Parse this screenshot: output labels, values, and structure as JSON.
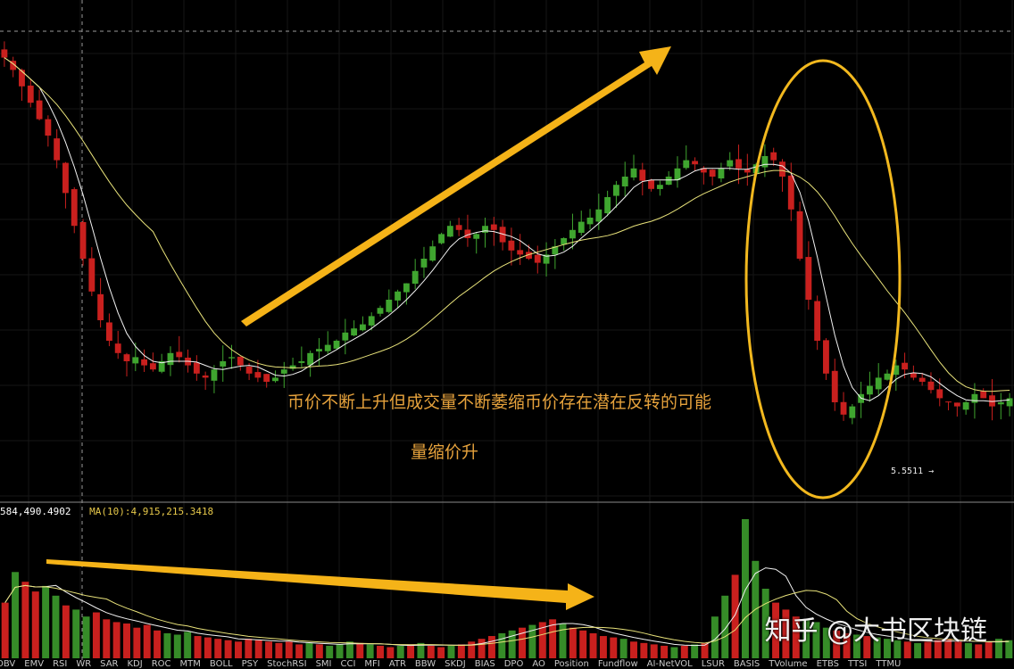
{
  "annotations": {
    "main": "币价不断上升但成交量不断萎缩币价存在潜在反转的可能",
    "sub": "量缩价升"
  },
  "volume_legend": {
    "value": "584,490.4902",
    "ma": "MA(10):4,915,215.3418"
  },
  "price_label": "5.5511 →",
  "indicator_tabs": [
    "OBV",
    "EMV",
    "RSI",
    "WR",
    "SAR",
    "KDJ",
    "ROC",
    "MTM",
    "BOLL",
    "PSY",
    "StochRSI",
    "SMI",
    "CCI",
    "MFI",
    "ATR",
    "BBW",
    "SKDJ",
    "BIAS",
    "DPO",
    "AO",
    "Position",
    "Fundflow",
    "AI-NetVOL",
    "LSUR",
    "BASIS",
    "TVolume",
    "ETBS",
    "TTSI",
    "TTMU"
  ],
  "watermark": "知乎 @大书区块链",
  "colors": {
    "background": "#000000",
    "up": "#3fa52f",
    "down": "#c9201e",
    "ma_short": "#f2f2f2",
    "ma_long": "#e8e27a",
    "arrow": "#f5b318",
    "ellipse": "#f2b81e"
  },
  "chart_data": [
    {
      "type": "candlestick",
      "series": [
        {
          "name": "price",
          "close_path": [
            99,
            96,
            92,
            88,
            84,
            80,
            74,
            66,
            58,
            50,
            42,
            35,
            30,
            27,
            25,
            26,
            24,
            23,
            25,
            27,
            26,
            24,
            22,
            21,
            23,
            25,
            26,
            24,
            22,
            21,
            20,
            21,
            23,
            24,
            25,
            27,
            28,
            29,
            30,
            32,
            33,
            34,
            36,
            38,
            40,
            42,
            44,
            47,
            50,
            53,
            56,
            58,
            57,
            55,
            56,
            58,
            57,
            54,
            52,
            51,
            50,
            49,
            51,
            53,
            55,
            57,
            59,
            60,
            62,
            65,
            68,
            70,
            72,
            69,
            67,
            68,
            70,
            72,
            74,
            73,
            71,
            70,
            72,
            74,
            72,
            71,
            73,
            75,
            74,
            70,
            62,
            50,
            40,
            30,
            22,
            15,
            12,
            14,
            17,
            19,
            21,
            22,
            24,
            23,
            21,
            20,
            18,
            16,
            15,
            14,
            15,
            17,
            16,
            14,
            15,
            16
          ]
        }
      ]
    },
    {
      "type": "bar",
      "series": [
        {
          "name": "volume",
          "values": [
            40,
            62,
            55,
            48,
            52,
            45,
            38,
            35,
            30,
            33,
            28,
            26,
            25,
            22,
            24,
            20,
            18,
            17,
            19,
            16,
            15,
            14,
            13,
            12,
            14,
            13,
            12,
            11,
            12,
            10,
            11,
            10,
            9,
            10,
            12,
            11,
            10,
            9,
            8,
            9,
            10,
            11,
            9,
            8,
            9,
            10,
            12,
            14,
            16,
            18,
            20,
            22,
            24,
            26,
            28,
            25,
            22,
            20,
            18,
            16,
            15,
            14,
            12,
            11,
            10,
            9,
            8,
            9,
            10,
            11,
            30,
            45,
            60,
            100,
            70,
            50,
            40,
            35,
            30,
            28,
            26,
            22,
            20,
            18,
            17,
            16,
            15,
            14,
            13,
            12,
            11,
            12,
            13,
            14,
            12,
            11,
            10,
            12,
            14,
            13
          ]
        }
      ]
    }
  ]
}
